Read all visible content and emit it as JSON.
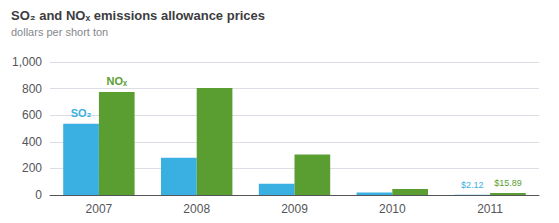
{
  "chart_data": {
    "type": "bar",
    "title": "SO₂ and NOₓ emissions allowance prices",
    "subtitle": "dollars per short ton",
    "categories": [
      "2007",
      "2008",
      "2009",
      "2010",
      "2011"
    ],
    "series": [
      {
        "name": "SO₂",
        "color": "#3ab0e2",
        "values": [
          535,
          280,
          85,
          18,
          2.12
        ]
      },
      {
        "name": "NOₓ",
        "color": "#5a9e32",
        "values": [
          775,
          805,
          305,
          45,
          15.89
        ]
      }
    ],
    "ylim": [
      0,
      1000
    ],
    "yticks": [
      0,
      200,
      400,
      600,
      800,
      {
        "value": 1000,
        "label": "1,000"
      }
    ],
    "grid": true,
    "annotations": [
      {
        "text": "$2.12",
        "series": "SO₂",
        "category": "2011"
      },
      {
        "text": "$15.89",
        "series": "NOₓ",
        "category": "2011"
      }
    ]
  }
}
